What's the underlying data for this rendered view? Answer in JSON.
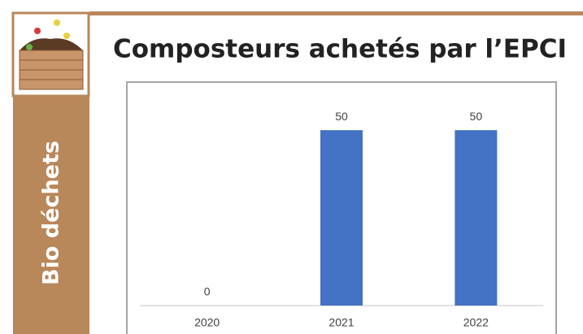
{
  "sidebar": {
    "label": "Bio déchets"
  },
  "chart_data": {
    "type": "bar",
    "title": "Composteurs achetés par l’EPCI",
    "categories": [
      "2020",
      "2021",
      "2022"
    ],
    "values": [
      0,
      50,
      50
    ],
    "color": "#4472c4",
    "ylim": [
      0,
      60
    ]
  }
}
